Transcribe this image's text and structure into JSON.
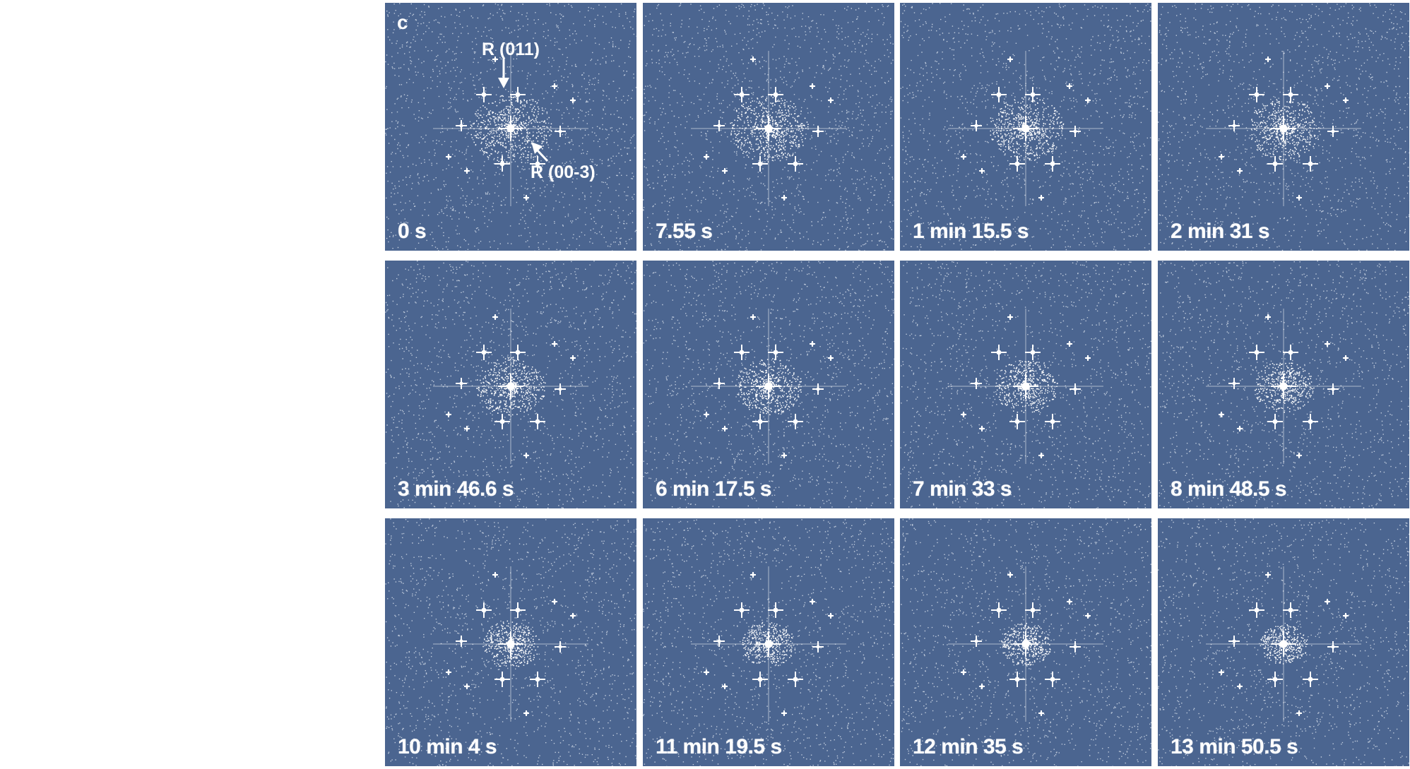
{
  "figure": {
    "panel_letter": "c",
    "annotations": {
      "reflection_1": "R (011)",
      "reflection_2": "R (00-3)"
    },
    "panel_color": "#4b6590",
    "spot_color": "#ffffff",
    "panels": [
      {
        "label": "0 s"
      },
      {
        "label": "7.55 s"
      },
      {
        "label": "1 min 15.5 s"
      },
      {
        "label": "2 min 31 s"
      },
      {
        "label": "3 min 46.6 s"
      },
      {
        "label": "6 min 17.5 s"
      },
      {
        "label": "7 min 33 s"
      },
      {
        "label": "8 min 48.5 s"
      },
      {
        "label": "10 min 4 s"
      },
      {
        "label": "11 min 19.5 s"
      },
      {
        "label": "12 min 35 s"
      },
      {
        "label": "13 min 50.5 s"
      }
    ]
  }
}
